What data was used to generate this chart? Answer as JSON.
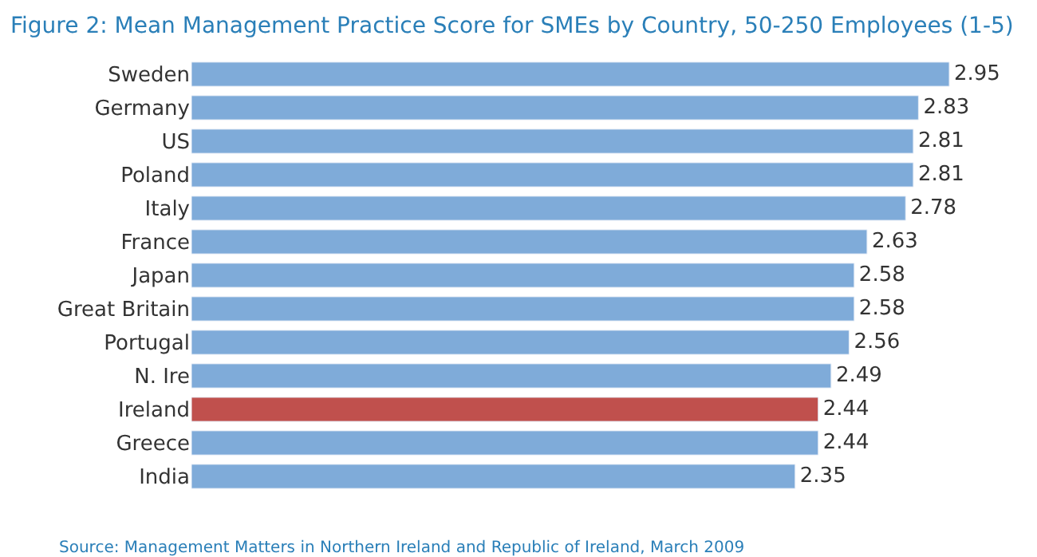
{
  "chart_data": {
    "type": "bar",
    "orientation": "horizontal",
    "title": "Figure 2: Mean Management Practice Score for SMEs by Country, 50-250 Employees (1-5)",
    "categories": [
      "Sweden",
      "Germany",
      "US",
      "Poland",
      "Italy",
      "France",
      "Japan",
      "Great Britain",
      "Portugal",
      "N. Ire",
      "Ireland",
      "Greece",
      "India"
    ],
    "values": [
      2.95,
      2.83,
      2.81,
      2.81,
      2.78,
      2.63,
      2.58,
      2.58,
      2.56,
      2.49,
      2.44,
      2.44,
      2.35
    ],
    "colors": [
      "#7fabd9",
      "#7fabd9",
      "#7fabd9",
      "#7fabd9",
      "#7fabd9",
      "#7fabd9",
      "#7fabd9",
      "#7fabd9",
      "#7fabd9",
      "#7fabd9",
      "#c0504d",
      "#7fabd9",
      "#7fabd9"
    ],
    "tick_labels": "y",
    "data_labels": true,
    "annotations": [
      "Source: Management Matters in Northern Ireland and Republic of Ireland, March 2009"
    ]
  }
}
